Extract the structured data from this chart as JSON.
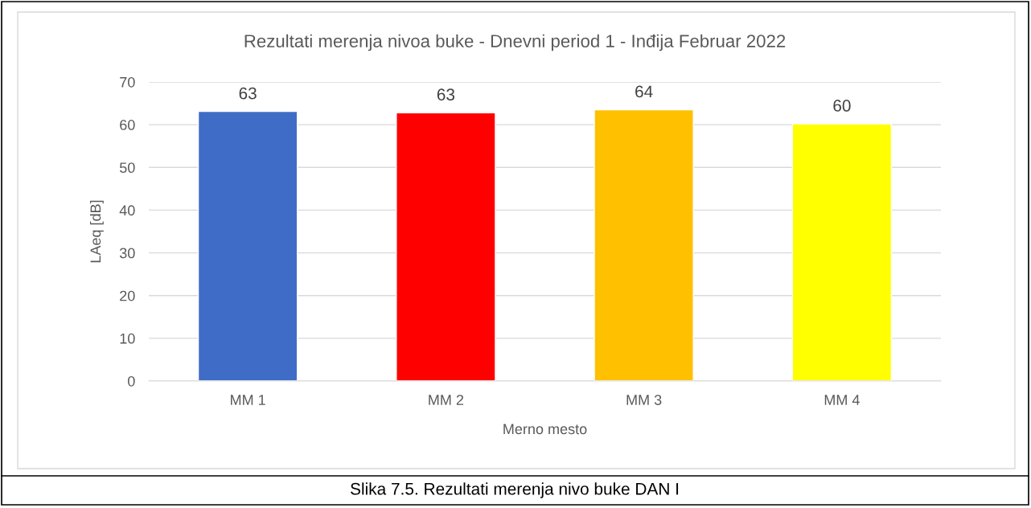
{
  "chart_data": {
    "type": "bar",
    "title": "Rezultati merenja nivoa buke - Dnevni period 1 - Inđija Februar 2022",
    "xlabel": "Merno mesto",
    "ylabel": "LAeq [dB]",
    "categories": [
      "MM 1",
      "MM 2",
      "MM 3",
      "MM 4"
    ],
    "values": [
      63.1,
      62.8,
      63.5,
      60.2
    ],
    "colors": [
      "#3f6cc6",
      "#ff0000",
      "#ffc000",
      "#ffff00"
    ],
    "value_labels": [
      "63",
      "63",
      "64",
      "60"
    ],
    "ylim": [
      0,
      70
    ],
    "yticks": [
      0,
      10,
      20,
      30,
      40,
      50,
      60,
      70
    ],
    "grid": "y",
    "legend": false,
    "annotations": [
      "Slika 7.5. Rezultati merenja nivo buke DAN I"
    ]
  }
}
